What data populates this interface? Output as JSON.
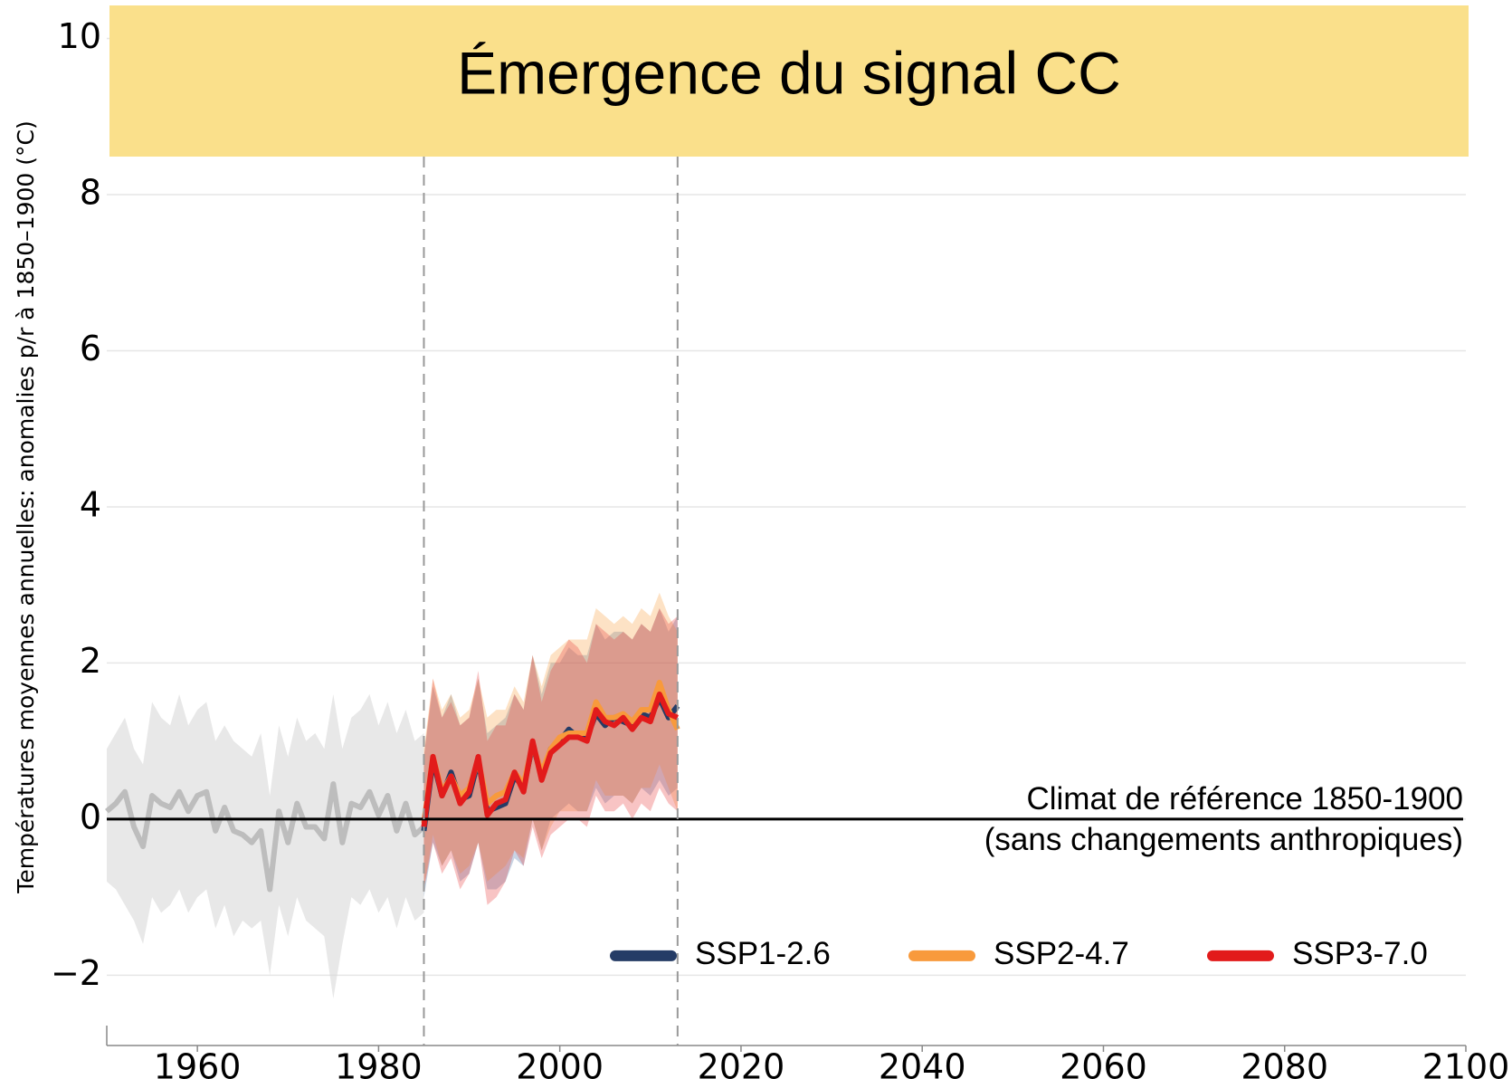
{
  "chart_data": {
    "type": "line",
    "title": "Émergence du signal CC",
    "y_label": "Températures moyennes annuelles: anomalies p/r à 1850–1900 (°C)",
    "xlim": [
      1950,
      2100
    ],
    "xticks": [
      1960,
      1980,
      2000,
      2020,
      2040,
      2060,
      2080,
      2100
    ],
    "ylim": [
      -2.9,
      10.4
    ],
    "yticks": [
      {
        "value": -2,
        "label": "−2"
      },
      0,
      2,
      4,
      6,
      8,
      10
    ],
    "grid": true,
    "legend": "lower right",
    "vlines": [
      1985,
      2013
    ],
    "hline": 0,
    "annotations": [
      "Climat de référence 1850-1900",
      "(sans changements anthropiques)"
    ],
    "series": [
      {
        "color": "#bdbdbd",
        "band_color": "#d9d9d9",
        "x": [
          1950,
          1951,
          1952,
          1953,
          1954,
          1955,
          1956,
          1957,
          1958,
          1959,
          1960,
          1961,
          1962,
          1963,
          1964,
          1965,
          1966,
          1967,
          1968,
          1969,
          1970,
          1971,
          1972,
          1973,
          1974,
          1975,
          1976,
          1977,
          1978,
          1979,
          1980,
          1981,
          1982,
          1983,
          1984,
          1985
        ],
        "values": [
          0.1,
          0.2,
          0.35,
          -0.1,
          -0.35,
          0.3,
          0.2,
          0.15,
          0.35,
          0.1,
          0.3,
          0.35,
          -0.15,
          0.15,
          -0.15,
          -0.2,
          -0.3,
          -0.15,
          -0.9,
          0.1,
          -0.3,
          0.2,
          -0.1,
          -0.1,
          -0.25,
          0.45,
          -0.3,
          0.2,
          0.15,
          0.35,
          0.05,
          0.3,
          -0.15,
          0.2,
          -0.2,
          -0.1
        ],
        "lower": [
          -0.8,
          -0.9,
          -1.1,
          -1.3,
          -1.6,
          -1.0,
          -1.2,
          -1.1,
          -0.9,
          -1.2,
          -1.0,
          -0.9,
          -1.4,
          -1.1,
          -1.5,
          -1.3,
          -1.4,
          -1.3,
          -2.0,
          -1.1,
          -1.5,
          -1.0,
          -1.3,
          -1.4,
          -1.5,
          -2.3,
          -1.6,
          -1.0,
          -1.1,
          -0.9,
          -1.2,
          -1.0,
          -1.4,
          -1.0,
          -1.3,
          -1.2
        ],
        "upper": [
          0.9,
          1.1,
          1.3,
          0.9,
          0.7,
          1.5,
          1.3,
          1.2,
          1.6,
          1.2,
          1.4,
          1.5,
          1.0,
          1.2,
          1.0,
          0.9,
          0.8,
          1.1,
          0.3,
          1.2,
          0.8,
          1.3,
          1.0,
          1.1,
          0.9,
          1.6,
          0.9,
          1.3,
          1.4,
          1.6,
          1.2,
          1.5,
          1.1,
          1.4,
          1.0,
          1.1
        ]
      },
      {
        "name": "SSP1-2.6",
        "color": "#253c66",
        "band_color": "#4a6fa5",
        "x": [
          1985,
          1986,
          1987,
          1988,
          1989,
          1990,
          1991,
          1992,
          1993,
          1994,
          1995,
          1996,
          1997,
          1998,
          1999,
          2000,
          2001,
          2002,
          2003,
          2004,
          2005,
          2006,
          2007,
          2008,
          2009,
          2010,
          2011,
          2012,
          2013
        ],
        "values": [
          -0.15,
          0.75,
          0.3,
          0.6,
          0.25,
          0.3,
          0.75,
          0.1,
          0.15,
          0.2,
          0.55,
          0.4,
          0.95,
          0.55,
          0.9,
          1.0,
          1.15,
          1.05,
          1.05,
          1.35,
          1.2,
          1.3,
          1.25,
          1.2,
          1.35,
          1.3,
          1.55,
          1.3,
          1.45
        ],
        "lower": [
          -1.0,
          -0.3,
          -0.6,
          -0.4,
          -0.8,
          -0.7,
          -0.3,
          -0.9,
          -0.9,
          -0.8,
          -0.5,
          -0.6,
          0.0,
          -0.4,
          0.0,
          0.1,
          0.2,
          0.1,
          0.1,
          0.4,
          0.2,
          0.3,
          0.3,
          0.2,
          0.4,
          0.3,
          0.5,
          0.3,
          0.4
        ],
        "upper": [
          0.8,
          1.7,
          1.3,
          1.6,
          1.2,
          1.3,
          1.8,
          1.1,
          1.2,
          1.3,
          1.6,
          1.4,
          2.1,
          1.6,
          2.0,
          2.0,
          2.2,
          2.1,
          2.1,
          2.5,
          2.3,
          2.4,
          2.4,
          2.3,
          2.5,
          2.4,
          2.7,
          2.4,
          2.6
        ]
      },
      {
        "name": "SSP2-4.7",
        "color": "#f89a3c",
        "band_color": "#f9a040",
        "x": [
          1985,
          1986,
          1987,
          1988,
          1989,
          1990,
          1991,
          1992,
          1993,
          1994,
          1995,
          1996,
          1997,
          1998,
          1999,
          2000,
          2001,
          2002,
          2003,
          2004,
          2005,
          2006,
          2007,
          2008,
          2009,
          2010,
          2011,
          2012,
          2013
        ],
        "values": [
          -0.05,
          0.8,
          0.35,
          0.55,
          0.3,
          0.4,
          0.75,
          0.2,
          0.3,
          0.35,
          0.6,
          0.45,
          0.95,
          0.6,
          0.9,
          1.05,
          1.1,
          1.1,
          1.1,
          1.5,
          1.3,
          1.3,
          1.35,
          1.25,
          1.4,
          1.4,
          1.75,
          1.4,
          1.15
        ],
        "lower": [
          -0.9,
          -0.2,
          -0.6,
          -0.4,
          -0.7,
          -0.6,
          -0.3,
          -0.8,
          -0.7,
          -0.6,
          -0.4,
          -0.5,
          0.0,
          -0.4,
          -0.1,
          0.1,
          0.1,
          0.1,
          0.1,
          0.5,
          0.3,
          0.3,
          0.3,
          0.2,
          0.4,
          0.4,
          0.7,
          0.4,
          0.1
        ],
        "upper": [
          0.9,
          1.8,
          1.4,
          1.6,
          1.3,
          1.4,
          1.8,
          1.3,
          1.4,
          1.4,
          1.7,
          1.5,
          2.1,
          1.7,
          2.1,
          2.2,
          2.3,
          2.3,
          2.3,
          2.7,
          2.6,
          2.5,
          2.6,
          2.5,
          2.7,
          2.6,
          2.9,
          2.6,
          2.4
        ]
      },
      {
        "name": "SSP3-7.0",
        "color": "#e21b1b",
        "band_color": "#e83c3c",
        "x": [
          1985,
          1986,
          1987,
          1988,
          1989,
          1990,
          1991,
          1992,
          1993,
          1994,
          1995,
          1996,
          1997,
          1998,
          1999,
          2000,
          2001,
          2002,
          2003,
          2004,
          2005,
          2006,
          2007,
          2008,
          2009,
          2010,
          2011,
          2012,
          2013
        ],
        "values": [
          -0.1,
          0.8,
          0.3,
          0.55,
          0.2,
          0.35,
          0.8,
          0.05,
          0.2,
          0.25,
          0.6,
          0.35,
          1.0,
          0.5,
          0.85,
          0.95,
          1.05,
          1.05,
          1.0,
          1.4,
          1.25,
          1.2,
          1.3,
          1.15,
          1.3,
          1.25,
          1.6,
          1.35,
          1.3
        ],
        "lower": [
          -0.9,
          -0.3,
          -0.7,
          -0.5,
          -0.9,
          -0.7,
          -0.3,
          -1.1,
          -1.0,
          -0.8,
          -0.4,
          -0.6,
          -0.1,
          -0.5,
          -0.2,
          -0.1,
          0.0,
          0.0,
          -0.1,
          0.3,
          0.1,
          0.1,
          0.2,
          0.0,
          0.2,
          0.1,
          0.4,
          0.2,
          0.1
        ],
        "upper": [
          0.8,
          1.8,
          1.3,
          1.5,
          1.2,
          1.3,
          1.9,
          1.0,
          1.2,
          1.2,
          1.6,
          1.4,
          2.1,
          1.5,
          1.9,
          2.1,
          2.3,
          2.2,
          2.0,
          2.5,
          2.4,
          2.3,
          2.4,
          2.3,
          2.5,
          2.4,
          2.7,
          2.5,
          2.6
        ]
      }
    ]
  }
}
